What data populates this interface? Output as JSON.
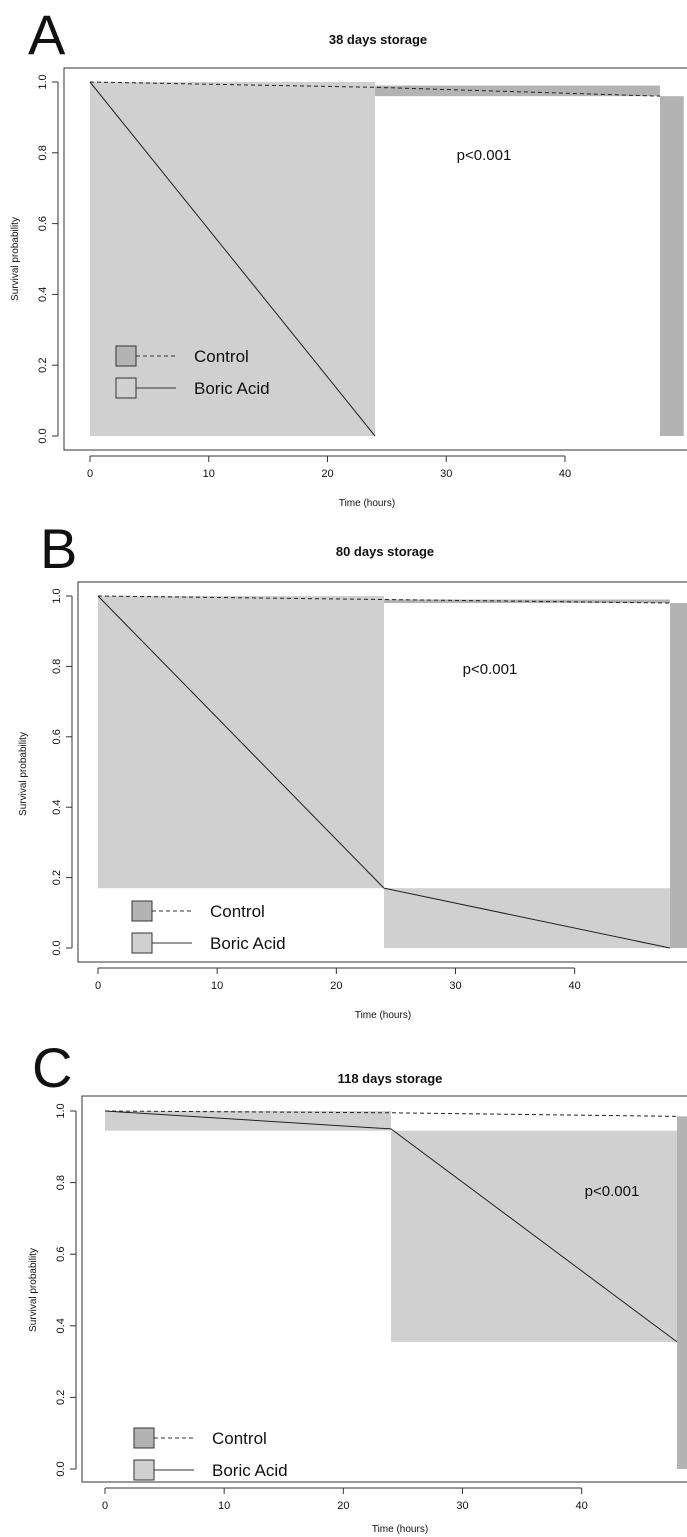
{
  "colors": {
    "control_fill": "#b3b3b3",
    "boric_fill": "#d0d0d0",
    "line": "#222222",
    "background": "#ffffff"
  },
  "chart_data": [
    {
      "type": "line",
      "panel_label": "A",
      "title": "38 days storage",
      "xlabel": "Time (hours)",
      "ylabel": "Survival probability",
      "xlim": [
        0,
        48
      ],
      "ylim": [
        0,
        1.0
      ],
      "xticks": [
        0,
        10,
        20,
        30,
        40
      ],
      "yticks": [
        0.0,
        0.2,
        0.4,
        0.6,
        0.8,
        1.0
      ],
      "xtick_labels": [
        "0",
        "10",
        "20",
        "30",
        "40"
      ],
      "ytick_labels": [
        "0.0",
        "0.2",
        "0.4",
        "0.6",
        "0.8",
        "1.0"
      ],
      "annotation": "p<0.001",
      "legend_position": "bottom-left",
      "series": [
        {
          "name": "Control",
          "line_style": "dashed",
          "x": [
            0,
            24,
            48
          ],
          "y": [
            1.0,
            0.985,
            0.96
          ],
          "ci_bands": [
            {
              "x0": 24,
              "x1": 48,
              "lower": 0.96,
              "upper": 0.99
            },
            {
              "x0": 48,
              "x1": 50,
              "lower": 0.0,
              "upper": 0.96
            }
          ]
        },
        {
          "name": "Boric Acid",
          "line_style": "solid",
          "x": [
            0,
            24
          ],
          "y": [
            1.0,
            0.0
          ],
          "ci_bands": [
            {
              "x0": 0,
              "x1": 24,
              "lower": 0.0,
              "upper": 1.0
            }
          ]
        }
      ]
    },
    {
      "type": "line",
      "panel_label": "B",
      "title": "80 days storage",
      "xlabel": "Time (hours)",
      "ylabel": "Survival probability",
      "xlim": [
        0,
        48
      ],
      "ylim": [
        0,
        1.0
      ],
      "xticks": [
        0,
        10,
        20,
        30,
        40
      ],
      "yticks": [
        0.0,
        0.2,
        0.4,
        0.6,
        0.8,
        1.0
      ],
      "xtick_labels": [
        "0",
        "10",
        "20",
        "30",
        "40"
      ],
      "ytick_labels": [
        "0.0",
        "0.2",
        "0.4",
        "0.6",
        "0.8",
        "1.0"
      ],
      "annotation": "p<0.001",
      "legend_position": "bottom-left",
      "series": [
        {
          "name": "Control",
          "line_style": "dashed",
          "x": [
            0,
            24,
            48
          ],
          "y": [
            1.0,
            0.99,
            0.98
          ],
          "ci_bands": [
            {
              "x0": 24,
              "x1": 48,
              "lower": 0.98,
              "upper": 0.99
            },
            {
              "x0": 48,
              "x1": 50,
              "lower": 0.0,
              "upper": 0.98
            }
          ]
        },
        {
          "name": "Boric Acid",
          "line_style": "solid",
          "x": [
            0,
            24,
            48
          ],
          "y": [
            1.0,
            0.17,
            0.0
          ],
          "ci_bands": [
            {
              "x0": 0,
              "x1": 24,
              "lower": 0.17,
              "upper": 1.0
            },
            {
              "x0": 24,
              "x1": 48,
              "lower": 0.0,
              "upper": 0.17
            }
          ]
        }
      ]
    },
    {
      "type": "line",
      "panel_label": "C",
      "title": "118 days storage",
      "xlabel": "Time (hours)",
      "ylabel": "Survival probability",
      "xlim": [
        0,
        48
      ],
      "ylim": [
        0,
        1.0
      ],
      "xticks": [
        0,
        10,
        20,
        30,
        40
      ],
      "yticks": [
        0.0,
        0.2,
        0.4,
        0.6,
        0.8,
        1.0
      ],
      "xtick_labels": [
        "0",
        "10",
        "20",
        "30",
        "40"
      ],
      "ytick_labels": [
        "0.0",
        "0.2",
        "0.4",
        "0.6",
        "0.8",
        "1.0"
      ],
      "annotation": "p<0.001",
      "legend_position": "bottom-left",
      "series": [
        {
          "name": "Control",
          "line_style": "dashed",
          "x": [
            0,
            24,
            48
          ],
          "y": [
            1.0,
            0.995,
            0.985
          ],
          "ci_bands": [
            {
              "x0": 48,
              "x1": 50,
              "lower": 0.0,
              "upper": 0.985
            }
          ]
        },
        {
          "name": "Boric Acid",
          "line_style": "solid",
          "x": [
            0,
            24,
            48
          ],
          "y": [
            1.0,
            0.95,
            0.355
          ],
          "ci_bands": [
            {
              "x0": 0,
              "x1": 24,
              "lower": 0.945,
              "upper": 1.0
            },
            {
              "x0": 24,
              "x1": 48,
              "lower": 0.355,
              "upper": 0.945
            }
          ]
        }
      ]
    }
  ]
}
